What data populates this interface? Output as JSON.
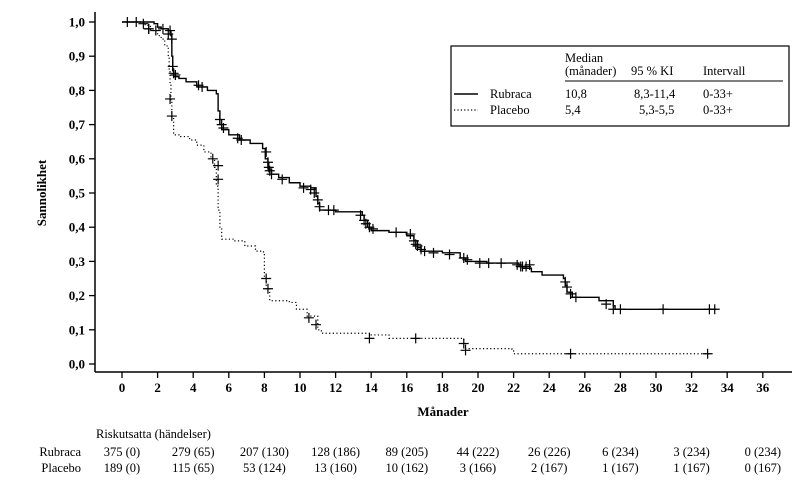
{
  "chart_data": {
    "type": "line",
    "subtype": "kaplan-meier",
    "title": "",
    "xlabel": "Månader",
    "ylabel": "Sannolikhet",
    "xlim": [
      -1.5,
      37.5
    ],
    "ylim": [
      0.0,
      1.0
    ],
    "x_ticks": [
      0,
      2,
      4,
      6,
      8,
      10,
      12,
      14,
      16,
      18,
      20,
      22,
      24,
      26,
      28,
      30,
      32,
      34,
      36
    ],
    "y_ticks": [
      "0,0",
      "0,1",
      "0,2",
      "0,3",
      "0,4",
      "0,5",
      "0,6",
      "0,7",
      "0,8",
      "0,9",
      "1,0"
    ],
    "y_tick_values": [
      0.0,
      0.1,
      0.2,
      0.3,
      0.4,
      0.5,
      0.6,
      0.7,
      0.8,
      0.9,
      1.0
    ],
    "grid": false,
    "legend": {
      "placement": "top-right",
      "headers": [
        "Median\n(månader)",
        "95 % KI",
        "Intervall"
      ],
      "header_median_line1": "Median",
      "header_median_line2": "(månader)",
      "header_ci": "95 % KI",
      "header_range": "Intervall",
      "rows": [
        {
          "name": "Rubraca",
          "style": "solid",
          "median": "10,8",
          "ci": "8,3-11,4",
          "range": "0-33+"
        },
        {
          "name": "Placebo",
          "style": "dotted",
          "median": "5,4",
          "ci": "5,3-5,5",
          "range": "0-33+"
        }
      ]
    },
    "series": [
      {
        "name": "Rubraca",
        "style": "solid",
        "steps": [
          [
            0,
            1.0
          ],
          [
            1.8,
            0.995
          ],
          [
            2.0,
            0.985
          ],
          [
            2.2,
            0.98
          ],
          [
            2.6,
            0.975
          ],
          [
            2.75,
            0.96
          ],
          [
            2.8,
            0.9
          ],
          [
            2.85,
            0.86
          ],
          [
            2.9,
            0.84
          ],
          [
            3.2,
            0.835
          ],
          [
            3.6,
            0.825
          ],
          [
            4.2,
            0.81
          ],
          [
            4.8,
            0.8
          ],
          [
            5.3,
            0.79
          ],
          [
            5.4,
            0.74
          ],
          [
            5.5,
            0.7
          ],
          [
            5.6,
            0.685
          ],
          [
            6.0,
            0.67
          ],
          [
            6.6,
            0.655
          ],
          [
            7.2,
            0.645
          ],
          [
            7.9,
            0.63
          ],
          [
            8.05,
            0.6
          ],
          [
            8.2,
            0.57
          ],
          [
            8.4,
            0.555
          ],
          [
            8.8,
            0.545
          ],
          [
            9.4,
            0.53
          ],
          [
            10.0,
            0.52
          ],
          [
            10.6,
            0.515
          ],
          [
            10.9,
            0.49
          ],
          [
            11.0,
            0.47
          ],
          [
            11.1,
            0.45
          ],
          [
            12.0,
            0.445
          ],
          [
            13.5,
            0.435
          ],
          [
            13.6,
            0.42
          ],
          [
            13.8,
            0.4
          ],
          [
            14.0,
            0.39
          ],
          [
            15.0,
            0.385
          ],
          [
            16.0,
            0.375
          ],
          [
            16.4,
            0.36
          ],
          [
            16.6,
            0.34
          ],
          [
            16.8,
            0.33
          ],
          [
            18.0,
            0.325
          ],
          [
            19.0,
            0.31
          ],
          [
            19.3,
            0.3
          ],
          [
            20.5,
            0.295
          ],
          [
            22.3,
            0.285
          ],
          [
            22.5,
            0.28
          ],
          [
            23.0,
            0.27
          ],
          [
            23.6,
            0.26
          ],
          [
            24.8,
            0.25
          ],
          [
            24.9,
            0.23
          ],
          [
            25.0,
            0.21
          ],
          [
            25.3,
            0.195
          ],
          [
            26.8,
            0.185
          ],
          [
            27.6,
            0.17
          ],
          [
            27.7,
            0.16
          ],
          [
            33.4,
            0.16
          ]
        ],
        "censored": [
          [
            0.3,
            1.0
          ],
          [
            0.8,
            1.0
          ],
          [
            1.2,
            0.995
          ],
          [
            1.5,
            0.98
          ],
          [
            1.9,
            0.975
          ],
          [
            2.3,
            0.98
          ],
          [
            2.7,
            0.975
          ],
          [
            2.8,
            0.95
          ],
          [
            2.85,
            0.87
          ],
          [
            2.9,
            0.85
          ],
          [
            3.0,
            0.845
          ],
          [
            4.3,
            0.815
          ],
          [
            4.5,
            0.81
          ],
          [
            5.5,
            0.715
          ],
          [
            5.6,
            0.7
          ],
          [
            5.7,
            0.69
          ],
          [
            6.5,
            0.66
          ],
          [
            6.7,
            0.655
          ],
          [
            8.1,
            0.62
          ],
          [
            8.2,
            0.59
          ],
          [
            8.25,
            0.575
          ],
          [
            8.3,
            0.565
          ],
          [
            8.4,
            0.555
          ],
          [
            9.0,
            0.54
          ],
          [
            10.2,
            0.515
          ],
          [
            10.6,
            0.51
          ],
          [
            10.8,
            0.5
          ],
          [
            11.0,
            0.48
          ],
          [
            11.1,
            0.46
          ],
          [
            11.6,
            0.45
          ],
          [
            11.9,
            0.45
          ],
          [
            13.4,
            0.435
          ],
          [
            13.6,
            0.42
          ],
          [
            13.7,
            0.41
          ],
          [
            13.9,
            0.4
          ],
          [
            14.1,
            0.395
          ],
          [
            15.4,
            0.385
          ],
          [
            16.2,
            0.38
          ],
          [
            16.4,
            0.36
          ],
          [
            16.5,
            0.35
          ],
          [
            16.6,
            0.345
          ],
          [
            16.8,
            0.335
          ],
          [
            17.0,
            0.33
          ],
          [
            17.5,
            0.325
          ],
          [
            18.4,
            0.32
          ],
          [
            19.2,
            0.31
          ],
          [
            19.4,
            0.305
          ],
          [
            20.1,
            0.295
          ],
          [
            20.6,
            0.295
          ],
          [
            21.3,
            0.295
          ],
          [
            22.2,
            0.29
          ],
          [
            22.4,
            0.285
          ],
          [
            22.5,
            0.285
          ],
          [
            22.7,
            0.285
          ],
          [
            22.9,
            0.29
          ],
          [
            24.9,
            0.24
          ],
          [
            25.0,
            0.225
          ],
          [
            25.2,
            0.205
          ],
          [
            25.5,
            0.195
          ],
          [
            27.2,
            0.175
          ],
          [
            27.6,
            0.16
          ],
          [
            28.0,
            0.16
          ],
          [
            30.4,
            0.16
          ],
          [
            33.0,
            0.16
          ],
          [
            33.3,
            0.16
          ]
        ]
      },
      {
        "name": "Placebo",
        "style": "dotted",
        "steps": [
          [
            0,
            1.0
          ],
          [
            1.3,
            0.99
          ],
          [
            1.6,
            0.975
          ],
          [
            2.0,
            0.96
          ],
          [
            2.2,
            0.95
          ],
          [
            2.4,
            0.93
          ],
          [
            2.6,
            0.9
          ],
          [
            2.65,
            0.86
          ],
          [
            2.7,
            0.82
          ],
          [
            2.75,
            0.77
          ],
          [
            2.8,
            0.72
          ],
          [
            2.9,
            0.67
          ],
          [
            3.3,
            0.665
          ],
          [
            3.8,
            0.655
          ],
          [
            4.2,
            0.64
          ],
          [
            4.6,
            0.62
          ],
          [
            5.0,
            0.6
          ],
          [
            5.2,
            0.575
          ],
          [
            5.3,
            0.52
          ],
          [
            5.4,
            0.45
          ],
          [
            5.5,
            0.4
          ],
          [
            5.6,
            0.365
          ],
          [
            6.3,
            0.36
          ],
          [
            6.9,
            0.345
          ],
          [
            7.5,
            0.33
          ],
          [
            7.95,
            0.32
          ],
          [
            8.0,
            0.25
          ],
          [
            8.1,
            0.22
          ],
          [
            8.3,
            0.185
          ],
          [
            9.4,
            0.18
          ],
          [
            9.8,
            0.16
          ],
          [
            10.4,
            0.14
          ],
          [
            11.0,
            0.1
          ],
          [
            11.2,
            0.09
          ],
          [
            14.0,
            0.085
          ],
          [
            15.0,
            0.075
          ],
          [
            19.2,
            0.06
          ],
          [
            19.3,
            0.045
          ],
          [
            21.9,
            0.04
          ],
          [
            22.0,
            0.03
          ],
          [
            33.0,
            0.03
          ]
        ],
        "censored": [
          [
            1.5,
            0.98
          ],
          [
            2.6,
            0.965
          ],
          [
            2.7,
            0.775
          ],
          [
            2.8,
            0.725
          ],
          [
            5.1,
            0.6
          ],
          [
            5.4,
            0.58
          ],
          [
            5.4,
            0.54
          ],
          [
            8.1,
            0.25
          ],
          [
            8.2,
            0.22
          ],
          [
            10.5,
            0.135
          ],
          [
            10.9,
            0.115
          ],
          [
            13.9,
            0.075
          ],
          [
            16.5,
            0.075
          ],
          [
            19.2,
            0.06
          ],
          [
            19.3,
            0.04
          ],
          [
            25.2,
            0.03
          ],
          [
            32.9,
            0.03
          ]
        ]
      }
    ],
    "risk_table": {
      "title": "Riskutsatta (händelser)",
      "timepoints": [
        0,
        4,
        8,
        12,
        16,
        20,
        24,
        28,
        32,
        36
      ],
      "rows": [
        {
          "name": "Rubraca",
          "values": [
            "375 (0)",
            "279 (65)",
            "207 (130)",
            "128 (186)",
            "89 (205)",
            "44 (222)",
            "26 (226)",
            "6 (234)",
            "3 (234)",
            "0 (234)"
          ]
        },
        {
          "name": "Placebo",
          "values": [
            "189 (0)",
            "115 (65)",
            "53 (124)",
            "13 (160)",
            "10 (162)",
            "3 (166)",
            "2 (167)",
            "1 (167)",
            "1 (167)",
            "0 (167)"
          ]
        }
      ]
    }
  }
}
